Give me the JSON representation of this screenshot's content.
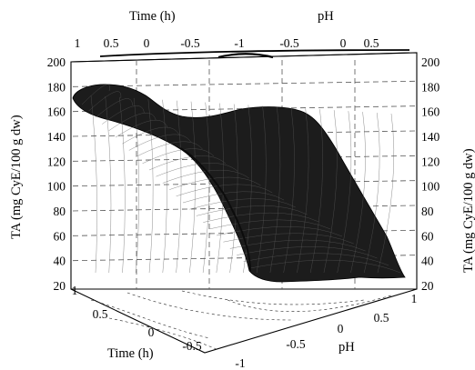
{
  "chart_data": {
    "type": "surface",
    "zlabel": "TA (mg CyE/100 g dw)",
    "xlabel": "Time (h)",
    "ylabel": "pH",
    "zlim": [
      20,
      200
    ],
    "z_ticks": [
      "200",
      "180",
      "160",
      "140",
      "120",
      "100",
      "80",
      "60",
      "40",
      "20"
    ],
    "time_ticks_top": [
      "1",
      "0.5",
      "0",
      "-0.5",
      "-1"
    ],
    "ph_ticks_top": [
      "-1",
      "-0.5",
      "0",
      "0.5"
    ],
    "time_ticks_bottom": [
      "1",
      "0.5",
      "0",
      "-0.5",
      "-1"
    ],
    "ph_ticks_bottom": [
      "-0.5",
      "0",
      "0.5",
      "1"
    ],
    "grid": true,
    "surface": {
      "time": [
        1,
        0.5,
        0,
        -0.5,
        -1
      ],
      "pH": [
        -1,
        -0.5,
        0,
        0.5,
        1
      ],
      "z": [
        [
          168,
          162,
          152,
          145,
          155
        ],
        [
          160,
          150,
          140,
          132,
          140
        ],
        [
          148,
          134,
          118,
          105,
          112
        ],
        [
          138,
          118,
          90,
          72,
          60
        ],
        [
          140,
          115,
          80,
          55,
          45
        ]
      ]
    }
  }
}
